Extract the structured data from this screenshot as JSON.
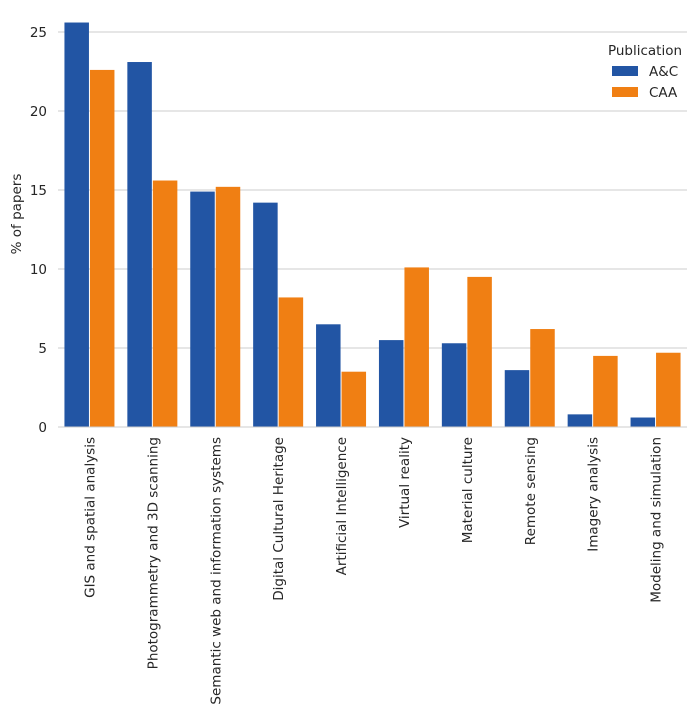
{
  "chart_data": {
    "type": "bar",
    "title": "",
    "xlabel": "",
    "ylabel": "% of papers",
    "ylim": [
      0,
      26
    ],
    "yticks": [
      0,
      5,
      10,
      15,
      20,
      25
    ],
    "grid": "horizontal",
    "legend": {
      "title": "Publication",
      "placement": "top-right"
    },
    "categories": [
      "GIS and spatial analysis",
      "Photogrammetry and 3D scanning",
      "Semantic web and information systems",
      "Digital Cultural Heritage",
      "Artificial Intelligence",
      "Virtual reality",
      "Material culture",
      "Remote sensing",
      "Imagery analysis",
      "Modeling and simulation"
    ],
    "series": [
      {
        "name": "A&C",
        "color": "#2255a4",
        "values": [
          25.6,
          23.1,
          14.9,
          14.2,
          6.5,
          5.5,
          5.3,
          3.6,
          0.8,
          0.6
        ]
      },
      {
        "name": "CAA",
        "color": "#f07f13",
        "values": [
          22.6,
          15.6,
          15.2,
          8.2,
          3.5,
          10.1,
          9.5,
          6.2,
          4.5,
          4.7
        ]
      }
    ]
  }
}
